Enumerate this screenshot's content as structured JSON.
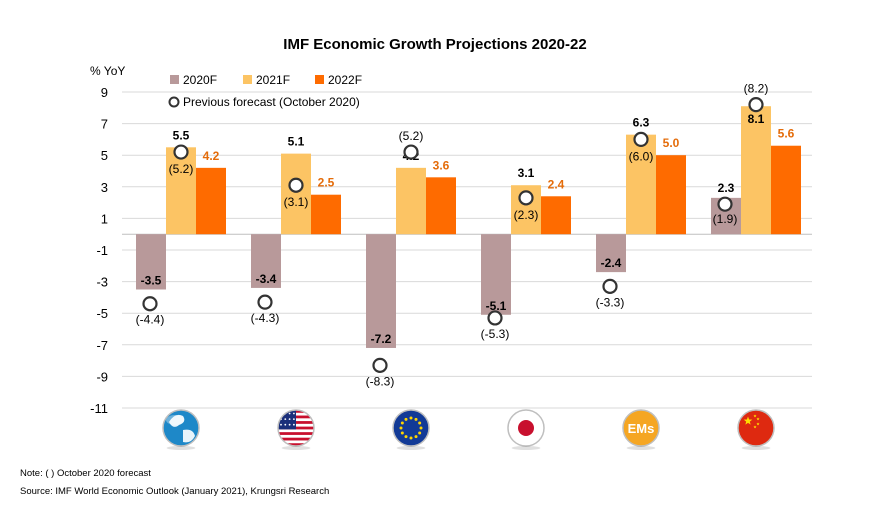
{
  "chart_data": {
    "type": "bar",
    "title": "IMF Economic Growth Projections 2020-22",
    "ylabel": "% YoY",
    "ylim": [
      -11,
      9
    ],
    "yticks": [
      9,
      7,
      5,
      3,
      1,
      -1,
      -3,
      -5,
      -7,
      -9,
      -11
    ],
    "grid": true,
    "legend_position": "top-left",
    "legend_marker_label": "Previous forecast (October 2020)",
    "categories": [
      "World",
      "United States",
      "Euro Area",
      "Japan",
      "EMs",
      "China"
    ],
    "category_icons": [
      "globe-icon",
      "us-flag-icon",
      "eu-flag-icon",
      "japan-flag-icon",
      "ems-badge-icon",
      "china-flag-icon"
    ],
    "ems_badge_text": "EMs",
    "series": [
      {
        "name": "2020F",
        "color": "#b8999a",
        "values": [
          -3.5,
          -3.4,
          -7.2,
          -5.1,
          -2.4,
          2.3
        ],
        "labels": [
          "-3.5",
          "-3.4",
          "-7.2",
          "-5.1",
          "-2.4",
          "2.3"
        ],
        "previous": [
          -4.4,
          -4.3,
          -8.3,
          -5.3,
          -3.3,
          1.9
        ],
        "previous_labels": [
          "(-4.4)",
          "(-4.3)",
          "(-8.3)",
          "(-5.3)",
          "(-3.3)",
          "(1.9)"
        ]
      },
      {
        "name": "2021F",
        "color": "#fcc464",
        "values": [
          5.5,
          5.1,
          4.2,
          3.1,
          6.3,
          8.1
        ],
        "labels": [
          "5.5",
          "5.1",
          "4.2",
          "3.1",
          "6.3",
          "8.1"
        ],
        "previous": [
          5.2,
          3.1,
          5.2,
          2.3,
          6.0,
          8.2
        ],
        "previous_labels": [
          "(5.2)",
          "(3.1)",
          "(5.2)",
          "(2.3)",
          "(6.0)",
          "(8.2)"
        ]
      },
      {
        "name": "2022F",
        "color": "#fe6b00",
        "values": [
          4.2,
          2.5,
          3.6,
          2.4,
          5.0,
          5.6
        ],
        "labels": [
          "4.2",
          "2.5",
          "3.6",
          "2.4",
          "5.0",
          "5.6"
        ]
      }
    ]
  },
  "footnotes": {
    "note": "Note: (   ) October 2020 forecast",
    "source": "Source: IMF World Economic Outlook (January 2021), Krungsri Research"
  }
}
